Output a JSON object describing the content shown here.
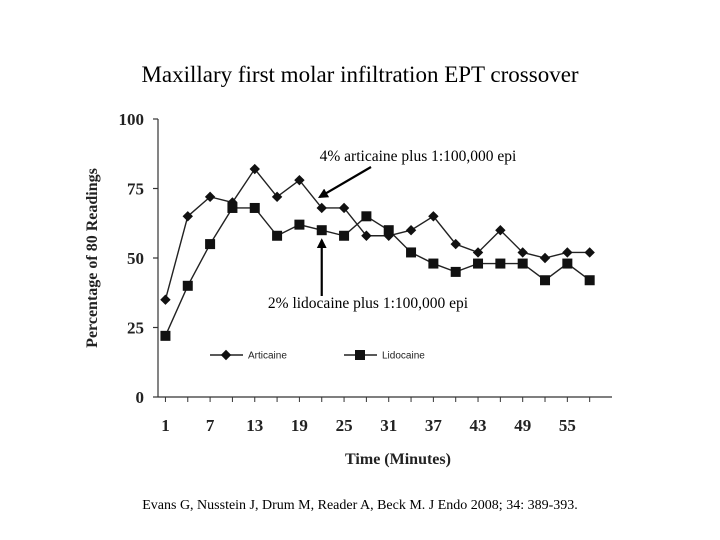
{
  "chart_data": {
    "type": "line",
    "title": "Maxillary first molar infiltration EPT crossover",
    "xlabel": "Time (Minutes)",
    "ylabel": "Percentage of 80 Readings",
    "x": [
      1,
      4,
      7,
      10,
      13,
      16,
      19,
      22,
      25,
      28,
      31,
      34,
      37,
      40,
      43,
      46,
      49,
      52,
      55,
      58
    ],
    "xticks": [
      "1",
      "7",
      "13",
      "19",
      "25",
      "31",
      "37",
      "43",
      "49",
      "55"
    ],
    "yticks": [
      "0",
      "25",
      "50",
      "75",
      "100"
    ],
    "ylim": [
      0,
      100
    ],
    "legend_position": "bottom",
    "series": [
      {
        "name": "Articaine",
        "marker": "diamond",
        "values": [
          35,
          65,
          72,
          70,
          82,
          72,
          78,
          68,
          68,
          58,
          58,
          60,
          65,
          55,
          52,
          60,
          52,
          50,
          52,
          52
        ]
      },
      {
        "name": "Lidocaine",
        "marker": "square",
        "values": [
          22,
          40,
          55,
          68,
          68,
          58,
          62,
          60,
          58,
          65,
          60,
          52,
          48,
          45,
          48,
          48,
          48,
          42,
          48,
          42
        ]
      }
    ],
    "annotations": [
      {
        "text": "4% articaine plus 1:100,000 epi",
        "series": "Articaine"
      },
      {
        "text": "2% lidocaine plus 1:100,000 epi",
        "series": "Lidocaine"
      }
    ]
  },
  "citation": "Evans G, Nusstein J, Drum M, Reader A, Beck M. J Endo 2008; 34: 389-393."
}
